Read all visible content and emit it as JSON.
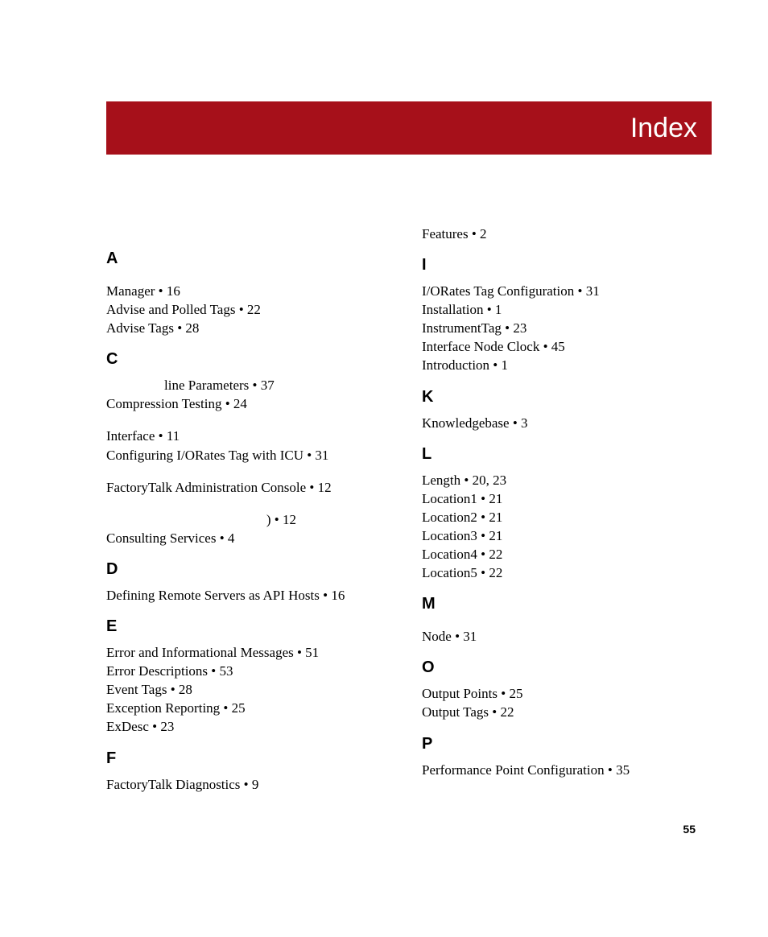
{
  "colors": {
    "banner_bg": "#a6101a",
    "banner_text": "#ffffff",
    "page_bg": "#ffffff",
    "text": "#000000"
  },
  "typography": {
    "banner_font": "Arial",
    "banner_fontsize": 34,
    "letter_font": "Arial",
    "letter_fontsize": 20,
    "letter_weight": 700,
    "body_font": "Times New Roman",
    "body_fontsize": 17,
    "page_num_font": "Arial",
    "page_num_fontsize": 14
  },
  "header": {
    "title": "Index"
  },
  "page_number": "55",
  "left_column": [
    {
      "type": "letter",
      "text": "A",
      "first": true
    },
    {
      "type": "entry",
      "text": "Manager • 16",
      "spaced": true
    },
    {
      "type": "entry",
      "text": "Advise and Polled Tags • 22"
    },
    {
      "type": "entry",
      "text": "Advise Tags • 28"
    },
    {
      "type": "letter",
      "text": "C"
    },
    {
      "type": "entry",
      "text": "line Parameters • 37",
      "indent_partial": true
    },
    {
      "type": "entry",
      "text": "Compression Testing • 24"
    },
    {
      "type": "entry",
      "text": "Interface • 11",
      "spaced": true
    },
    {
      "type": "entry",
      "text": "Configuring I/ORates Tag with ICU • 31"
    },
    {
      "type": "entry",
      "text": "FactoryTalk Administration Console • 12",
      "spaced": true
    },
    {
      "type": "entry",
      "text": ") • 12",
      "right_partial": true,
      "spaced": true
    },
    {
      "type": "entry",
      "text": "Consulting Services • 4"
    },
    {
      "type": "letter",
      "text": "D"
    },
    {
      "type": "entry",
      "text": "Defining Remote Servers as API Hosts • 16"
    },
    {
      "type": "letter",
      "text": "E"
    },
    {
      "type": "entry",
      "text": "Error and Informational Messages • 51"
    },
    {
      "type": "entry",
      "text": "Error Descriptions • 53"
    },
    {
      "type": "entry",
      "text": "Event Tags • 28"
    },
    {
      "type": "entry",
      "text": "Exception Reporting • 25"
    },
    {
      "type": "entry",
      "text": "ExDesc • 23"
    },
    {
      "type": "letter",
      "text": "F"
    },
    {
      "type": "entry",
      "text": "FactoryTalk Diagnostics • 9"
    }
  ],
  "right_column": [
    {
      "type": "entry",
      "text": "Features • 2"
    },
    {
      "type": "letter",
      "text": "I"
    },
    {
      "type": "entry",
      "text": "I/ORates Tag Configuration • 31"
    },
    {
      "type": "entry",
      "text": "Installation • 1"
    },
    {
      "type": "entry",
      "text": "InstrumentTag • 23"
    },
    {
      "type": "entry",
      "text": "Interface Node Clock • 45"
    },
    {
      "type": "entry",
      "text": "Introduction • 1"
    },
    {
      "type": "letter",
      "text": "K"
    },
    {
      "type": "entry",
      "text": "Knowledgebase • 3"
    },
    {
      "type": "letter",
      "text": "L"
    },
    {
      "type": "entry",
      "text": "Length • 20, 23"
    },
    {
      "type": "entry",
      "text": "Location1 • 21"
    },
    {
      "type": "entry",
      "text": "Location2 • 21"
    },
    {
      "type": "entry",
      "text": "Location3 • 21"
    },
    {
      "type": "entry",
      "text": "Location4 • 22"
    },
    {
      "type": "entry",
      "text": "Location5 • 22"
    },
    {
      "type": "letter",
      "text": "M"
    },
    {
      "type": "entry",
      "text": "Node • 31",
      "spaced": true
    },
    {
      "type": "letter",
      "text": "O"
    },
    {
      "type": "entry",
      "text": "Output Points • 25"
    },
    {
      "type": "entry",
      "text": "Output Tags • 22"
    },
    {
      "type": "letter",
      "text": "P"
    },
    {
      "type": "entry",
      "text": "Performance Point Configuration • 35"
    }
  ]
}
